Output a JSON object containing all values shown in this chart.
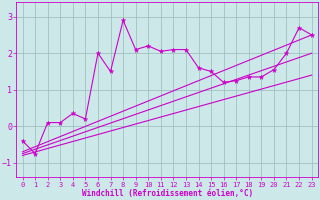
{
  "xlabel": "Windchill (Refroidissement éolien,°C)",
  "bg_color": "#cde8e8",
  "line_color": "#cc00cc",
  "grid_color": "#99bbbb",
  "ylim": [
    -1.4,
    3.4
  ],
  "xlim": [
    -0.5,
    23.5
  ],
  "yticks": [
    -1,
    0,
    1,
    2,
    3
  ],
  "xticks": [
    0,
    1,
    2,
    3,
    4,
    5,
    6,
    7,
    8,
    9,
    10,
    11,
    12,
    13,
    14,
    15,
    16,
    17,
    18,
    19,
    20,
    21,
    22,
    23
  ],
  "main_x": [
    0,
    1,
    2,
    3,
    4,
    5,
    6,
    7,
    8,
    9,
    10,
    11,
    12,
    13,
    14,
    15,
    16,
    17,
    18,
    19,
    20,
    21,
    22,
    23
  ],
  "main_y": [
    -0.4,
    -0.75,
    0.1,
    0.1,
    0.35,
    0.2,
    2.0,
    1.5,
    2.9,
    2.1,
    2.2,
    2.05,
    2.1,
    2.1,
    1.6,
    1.5,
    1.2,
    1.25,
    1.35,
    1.35,
    1.55,
    2.0,
    2.7,
    2.5
  ],
  "line1_x": [
    0,
    23
  ],
  "line1_y": [
    -0.8,
    1.4
  ],
  "line2_x": [
    0,
    23
  ],
  "line2_y": [
    -0.75,
    2.0
  ],
  "line3_x": [
    0,
    23
  ],
  "line3_y": [
    -0.7,
    2.5
  ],
  "tick_fontsize": 5,
  "xlabel_fontsize": 5.5
}
